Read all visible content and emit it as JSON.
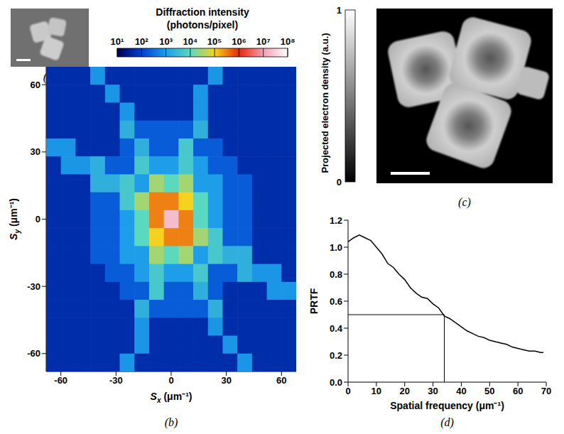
{
  "chart_data": [
    {
      "panel": "(b)",
      "type": "heatmap",
      "x_label": {
        "symbol": "S",
        "subscript": "x",
        "unit": "(μm⁻¹)"
      },
      "y_label": {
        "symbol": "S",
        "subscript": "y",
        "unit": "(μm⁻¹)"
      },
      "x": [
        -64,
        -56,
        -48,
        -40,
        -32,
        -24,
        -16,
        -8,
        0,
        8,
        16,
        24,
        32,
        40,
        48,
        56,
        64
      ],
      "y": [
        64,
        56,
        48,
        40,
        32,
        24,
        16,
        8,
        0,
        -8,
        -16,
        -24,
        -32,
        -40,
        -48,
        -56,
        -64
      ],
      "cells": [
        [
          50,
          50,
          50,
          800,
          50,
          50,
          50,
          50,
          50,
          50,
          50,
          800,
          50,
          50,
          50,
          50,
          50
        ],
        [
          50,
          50,
          50,
          50,
          800,
          50,
          50,
          50,
          50,
          50,
          800,
          50,
          50,
          50,
          50,
          50,
          50
        ],
        [
          50,
          50,
          50,
          50,
          50,
          800,
          50,
          50,
          50,
          50,
          800,
          50,
          50,
          50,
          50,
          50,
          50
        ],
        [
          50,
          50,
          50,
          50,
          50,
          2000,
          200,
          200,
          200,
          200,
          2000,
          50,
          50,
          50,
          50,
          50,
          50
        ],
        [
          800,
          800,
          50,
          50,
          50,
          200,
          2000,
          200,
          200,
          5000,
          200,
          200,
          50,
          50,
          50,
          50,
          50
        ],
        [
          50,
          800,
          800,
          2000,
          200,
          200,
          5000,
          1000,
          1000,
          5000,
          1000,
          200,
          200,
          50,
          50,
          50,
          50
        ],
        [
          50,
          50,
          50,
          2000,
          2000,
          5000,
          1000,
          30000,
          10000,
          30000,
          1000,
          1000,
          200,
          200,
          50,
          50,
          50
        ],
        [
          50,
          50,
          50,
          200,
          200,
          5000,
          30000,
          300000,
          300000,
          100000,
          10000,
          1000,
          200,
          200,
          50,
          50,
          50
        ],
        [
          50,
          50,
          50,
          200,
          200,
          1000,
          10000,
          300000,
          20000000,
          300000,
          10000,
          1000,
          200,
          200,
          50,
          50,
          50
        ],
        [
          50,
          50,
          50,
          200,
          200,
          1000,
          10000,
          100000,
          300000,
          300000,
          30000,
          5000,
          200,
          200,
          50,
          50,
          50
        ],
        [
          50,
          50,
          50,
          200,
          200,
          1000,
          1000,
          30000,
          10000,
          30000,
          1000,
          5000,
          2000,
          2000,
          50,
          50,
          50
        ],
        [
          50,
          50,
          50,
          50,
          200,
          200,
          1000,
          5000,
          1000,
          1000,
          5000,
          200,
          200,
          2000,
          800,
          800,
          50
        ],
        [
          50,
          50,
          50,
          50,
          50,
          200,
          200,
          5000,
          200,
          200,
          2000,
          200,
          50,
          50,
          50,
          800,
          800
        ],
        [
          50,
          50,
          50,
          50,
          50,
          50,
          2000,
          200,
          200,
          200,
          200,
          2000,
          50,
          50,
          50,
          50,
          50
        ],
        [
          50,
          50,
          50,
          50,
          50,
          50,
          800,
          50,
          50,
          50,
          50,
          800,
          50,
          50,
          50,
          50,
          50
        ],
        [
          50,
          50,
          50,
          50,
          50,
          50,
          800,
          50,
          50,
          50,
          50,
          50,
          800,
          50,
          50,
          50,
          50
        ],
        [
          50,
          50,
          50,
          50,
          50,
          800,
          50,
          50,
          50,
          50,
          50,
          50,
          50,
          800,
          50,
          50,
          50
        ]
      ],
      "xlim": [
        -68,
        68
      ],
      "ylim": [
        -68,
        68
      ],
      "xticks": [
        -60,
        -30,
        0,
        30,
        60
      ],
      "yticks": [
        -60,
        -30,
        0,
        30,
        60
      ],
      "colorbar": {
        "title": [
          "Diffraction intensity",
          "(photons/pixel)"
        ],
        "range": [
          10,
          100000000
        ],
        "log": true,
        "ticks": [
          {
            "value": 10,
            "label": "10¹"
          },
          {
            "value": 100,
            "label": "10²"
          },
          {
            "value": 1000,
            "label": "10³"
          },
          {
            "value": 10000,
            "label": "10⁴"
          },
          {
            "value": 100000,
            "label": "10⁵"
          },
          {
            "value": 1000000,
            "label": "10⁶"
          },
          {
            "value": 10000000,
            "label": "10⁷"
          },
          {
            "value": 100000000,
            "label": "10⁸"
          }
        ]
      }
    },
    {
      "panel": "(d)",
      "type": "line",
      "x_label": "Spatial frequency (μm⁻¹)",
      "y_label": "PRTF",
      "color": "#000000",
      "x": [
        0,
        2,
        4,
        6,
        8,
        10,
        12,
        14,
        16,
        18,
        20,
        22,
        24,
        26,
        28,
        30,
        32,
        34,
        36,
        38,
        40,
        42,
        44,
        46,
        48,
        50,
        52,
        54,
        56,
        58,
        60,
        62,
        64,
        66,
        68,
        69
      ],
      "values": [
        1.04,
        1.07,
        1.09,
        1.07,
        1.05,
        1.0,
        0.95,
        0.88,
        0.85,
        0.8,
        0.76,
        0.7,
        0.66,
        0.63,
        0.62,
        0.58,
        0.55,
        0.49,
        0.47,
        0.44,
        0.41,
        0.38,
        0.36,
        0.34,
        0.33,
        0.31,
        0.3,
        0.29,
        0.28,
        0.26,
        0.25,
        0.24,
        0.23,
        0.23,
        0.22,
        0.22
      ],
      "xlim": [
        0,
        70
      ],
      "xticks": [
        0,
        10,
        20,
        30,
        40,
        50,
        60,
        70
      ],
      "ylim": [
        0,
        1.2
      ],
      "yticks": [
        {
          "value": 0,
          "label": "0.0"
        },
        0.2,
        0.4,
        0.6,
        0.8,
        {
          "value": 1,
          "label": "1.0"
        },
        1.2
      ],
      "threshold": {
        "prtf": 0.5,
        "spatial_frequency": 34
      }
    }
  ],
  "images": [
    {
      "panel": "(a)"
    },
    {
      "panel": "(c)",
      "colorbar": {
        "title": "Projected electron density (a.u.)",
        "range": [
          0,
          1
        ],
        "ticks": [
          0,
          1
        ]
      }
    }
  ]
}
